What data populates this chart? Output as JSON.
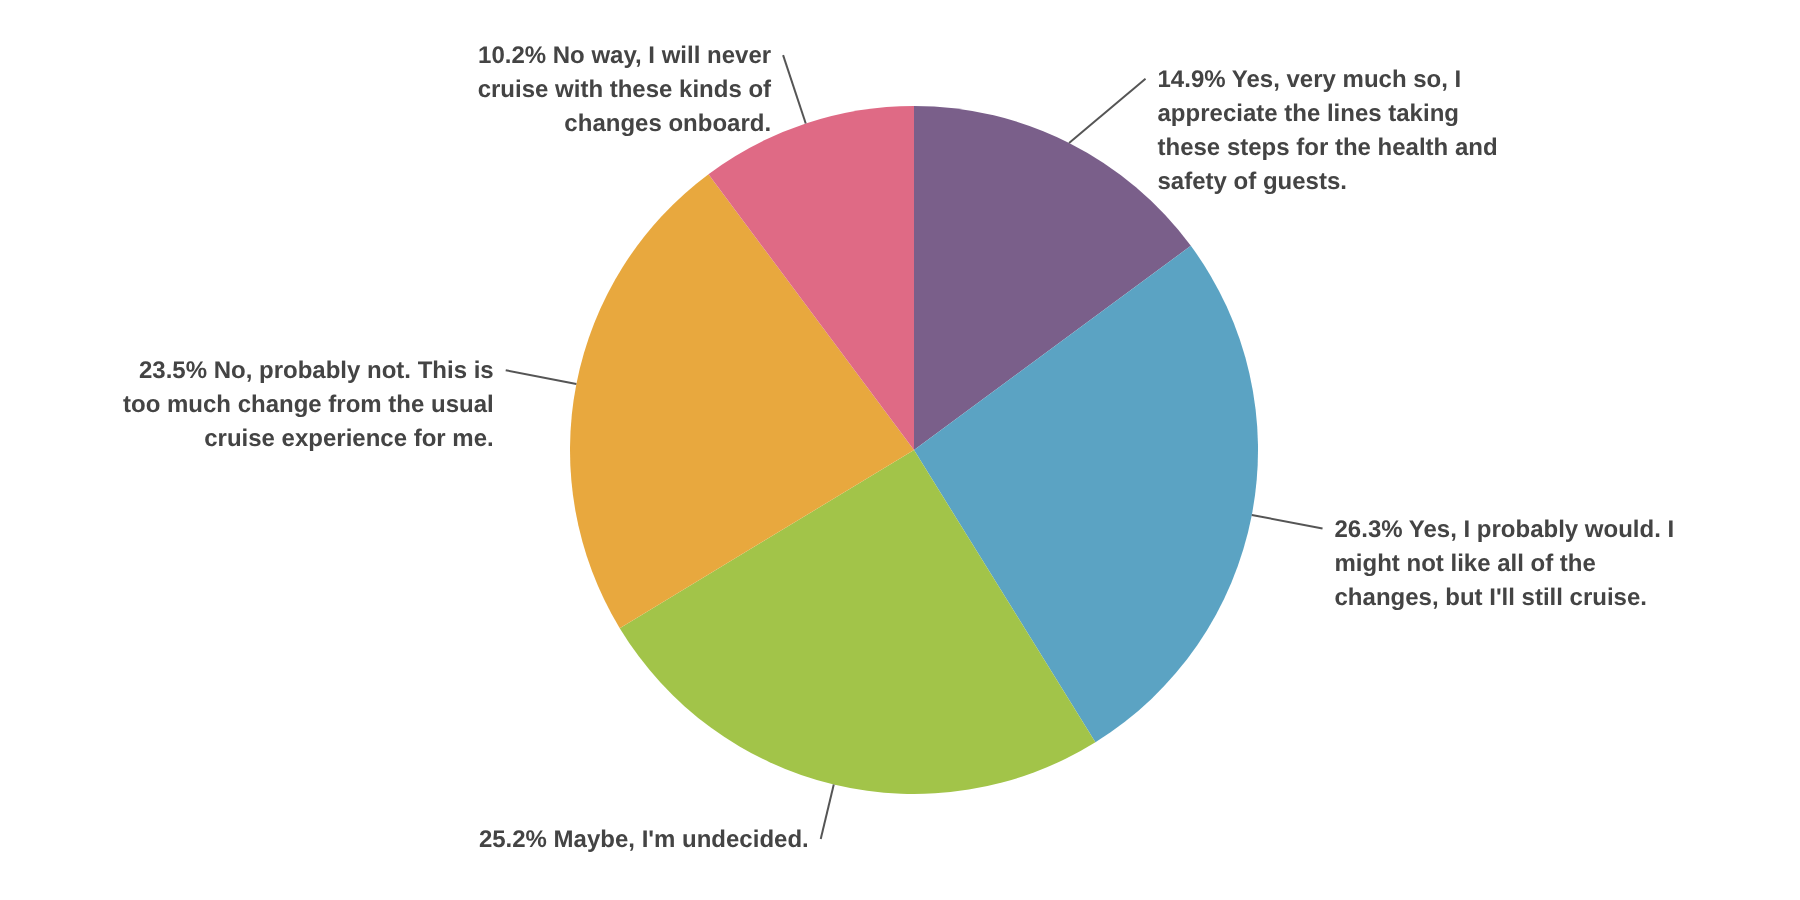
{
  "chart_data": {
    "type": "pie",
    "categories": [
      "Yes, very much so, I appreciate the lines taking these steps for the health and safety of guests.",
      "Yes, I probably would. I might not like all of the changes, but I'll still cruise.",
      "Maybe, I'm undecided.",
      "No, probably not. This is too much change from the usual cruise experience for me.",
      "No way, I will never cruise with these kinds of changes onboard."
    ],
    "values": [
      14.9,
      26.3,
      25.2,
      23.5,
      10.2
    ],
    "colors": [
      "#7a5f8a",
      "#5ba3c3",
      "#a2c449",
      "#e8a83e",
      "#df6a85"
    ],
    "value_labels": [
      "14.9%",
      "26.3%",
      "25.2%",
      "23.5%",
      "10.2%"
    ]
  }
}
